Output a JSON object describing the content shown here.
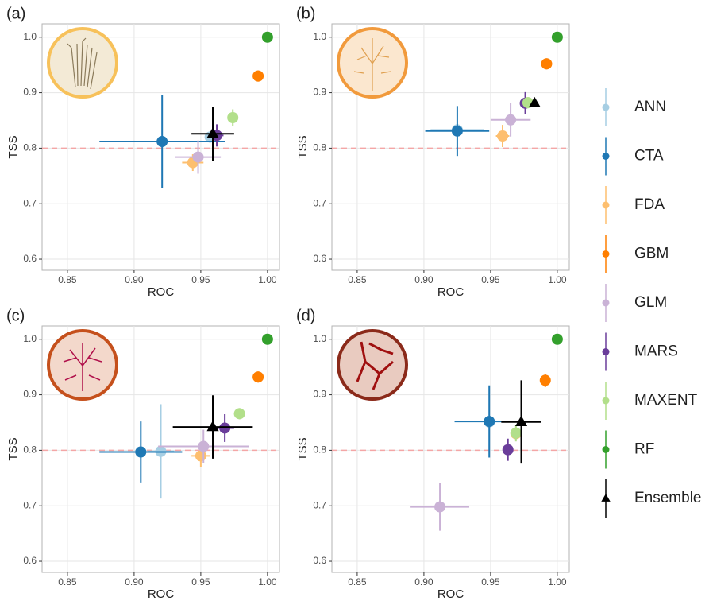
{
  "chart_data": [
    {
      "type": "scatter",
      "label": "(a)",
      "xlabel": "ROC",
      "ylabel": "TSS",
      "xlim": [
        0.831,
        1.009
      ],
      "ylim": [
        0.58,
        1.024
      ],
      "xticks": [
        0.85,
        {
          "value": 0.9,
          "label": "0.90"
        },
        0.95,
        {
          "value": 1,
          "label": "1.00"
        }
      ],
      "yticks": [
        0.6,
        0.7,
        0.8,
        0.9,
        {
          "value": 1,
          "label": "1.0"
        }
      ],
      "reference_line": 0.8,
      "grid": true,
      "series": [
        {
          "name": "ANN",
          "color": "#a6cee3",
          "marker": "circle",
          "x": [
            0.957
          ],
          "y": [
            0.82
          ],
          "xerr": [
            0.004
          ],
          "yerr": [
            0.01
          ]
        },
        {
          "name": "CTA",
          "color": "#1f78b4",
          "marker": "circle",
          "x": [
            0.921
          ],
          "y": [
            0.812
          ],
          "xerr": [
            0.047
          ],
          "yerr": [
            0.084
          ]
        },
        {
          "name": "FDA",
          "color": "#fdbf6f",
          "marker": "circle",
          "x": [
            0.944
          ],
          "y": [
            0.774
          ],
          "xerr": [
            0.008
          ],
          "yerr": [
            0.015
          ]
        },
        {
          "name": "GBM",
          "color": "#ff7f00",
          "marker": "circle",
          "x": [
            0.993
          ],
          "y": [
            0.93
          ],
          "xerr": [
            0.002
          ],
          "yerr": [
            0.01
          ]
        },
        {
          "name": "GLM",
          "color": "#cab2d6",
          "marker": "circle",
          "x": [
            0.948
          ],
          "y": [
            0.784
          ],
          "xerr": [
            0.017
          ],
          "yerr": [
            0.03
          ]
        },
        {
          "name": "MARS",
          "color": "#6a3d9a",
          "marker": "circle",
          "x": [
            0.962
          ],
          "y": [
            0.823
          ],
          "xerr": [
            0.005
          ],
          "yerr": [
            0.02
          ]
        },
        {
          "name": "MAXENT",
          "color": "#b2df8a",
          "marker": "circle",
          "x": [
            0.974
          ],
          "y": [
            0.855
          ],
          "xerr": [
            0.003
          ],
          "yerr": [
            0.015
          ]
        },
        {
          "name": "RF",
          "color": "#33a02c",
          "marker": "circle",
          "x": [
            1
          ],
          "y": [
            1
          ],
          "xerr": [
            0
          ],
          "yerr": [
            0
          ]
        },
        {
          "name": "Ensemble",
          "color": "#000000",
          "marker": "triangle",
          "x": [
            0.959
          ],
          "y": [
            0.826
          ],
          "xerr": [
            0.016
          ],
          "yerr": [
            0.049
          ]
        }
      ]
    },
    {
      "type": "scatter",
      "label": "(b)",
      "xlabel": "ROC",
      "ylabel": "TSS",
      "xlim": [
        0.831,
        1.009
      ],
      "ylim": [
        0.58,
        1.024
      ],
      "xticks": [
        0.85,
        {
          "value": 0.9,
          "label": "0.90"
        },
        0.95,
        {
          "value": 1,
          "label": "1.00"
        }
      ],
      "yticks": [
        0.6,
        0.7,
        0.8,
        0.9,
        {
          "value": 1,
          "label": "1.0"
        }
      ],
      "reference_line": 0.8,
      "grid": true,
      "series": [
        {
          "name": "ANN",
          "color": "#a6cee3",
          "marker": "circle",
          "x": [
            0.925
          ],
          "y": [
            0.833
          ],
          "xerr": [
            0.02
          ],
          "yerr": [
            0.01
          ]
        },
        {
          "name": "CTA",
          "color": "#1f78b4",
          "marker": "circle",
          "x": [
            0.925
          ],
          "y": [
            0.831
          ],
          "xerr": [
            0.024
          ],
          "yerr": [
            0.045
          ]
        },
        {
          "name": "FDA",
          "color": "#fdbf6f",
          "marker": "circle",
          "x": [
            0.959
          ],
          "y": [
            0.822
          ],
          "xerr": [
            0.005
          ],
          "yerr": [
            0.02
          ]
        },
        {
          "name": "GBM",
          "color": "#ff7f00",
          "marker": "circle",
          "x": [
            0.992
          ],
          "y": [
            0.952
          ],
          "xerr": [
            0.002
          ],
          "yerr": [
            0.01
          ]
        },
        {
          "name": "GLM",
          "color": "#cab2d6",
          "marker": "circle",
          "x": [
            0.965
          ],
          "y": [
            0.851
          ],
          "xerr": [
            0.015
          ],
          "yerr": [
            0.03
          ]
        },
        {
          "name": "MARS",
          "color": "#6a3d9a",
          "marker": "circle",
          "x": [
            0.976
          ],
          "y": [
            0.881
          ],
          "xerr": [
            0.003
          ],
          "yerr": [
            0.02
          ]
        },
        {
          "name": "MAXENT",
          "color": "#b2df8a",
          "marker": "circle",
          "x": [
            0.978
          ],
          "y": [
            0.882
          ],
          "xerr": [
            0.003
          ],
          "yerr": [
            0.01
          ]
        },
        {
          "name": "RF",
          "color": "#33a02c",
          "marker": "circle",
          "x": [
            1
          ],
          "y": [
            1
          ],
          "xerr": [
            0
          ],
          "yerr": [
            0
          ]
        },
        {
          "name": "Ensemble",
          "color": "#000000",
          "marker": "triangle",
          "x": [
            0.983
          ],
          "y": [
            0.881
          ],
          "xerr": [
            0.002
          ],
          "yerr": [
            0.005
          ]
        }
      ]
    },
    {
      "type": "scatter",
      "label": "(c)",
      "xlabel": "ROC",
      "ylabel": "TSS",
      "xlim": [
        0.831,
        1.009
      ],
      "ylim": [
        0.58,
        1.024
      ],
      "xticks": [
        0.85,
        {
          "value": 0.9,
          "label": "0.90"
        },
        0.95,
        {
          "value": 1,
          "label": "1.00"
        }
      ],
      "yticks": [
        0.6,
        0.7,
        0.8,
        0.9,
        {
          "value": 1,
          "label": "1.0"
        }
      ],
      "reference_line": 0.8,
      "grid": true,
      "series": [
        {
          "name": "ANN",
          "color": "#a6cee3",
          "marker": "circle",
          "x": [
            0.92
          ],
          "y": [
            0.798
          ],
          "xerr": [
            0.01
          ],
          "yerr": [
            0.085
          ]
        },
        {
          "name": "CTA",
          "color": "#1f78b4",
          "marker": "circle",
          "x": [
            0.905
          ],
          "y": [
            0.797
          ],
          "xerr": [
            0.031
          ],
          "yerr": [
            0.055
          ]
        },
        {
          "name": "FDA",
          "color": "#fdbf6f",
          "marker": "circle",
          "x": [
            0.95
          ],
          "y": [
            0.79
          ],
          "xerr": [
            0.007
          ],
          "yerr": [
            0.02
          ]
        },
        {
          "name": "GBM",
          "color": "#ff7f00",
          "marker": "circle",
          "x": [
            0.993
          ],
          "y": [
            0.932
          ],
          "xerr": [
            0.002
          ],
          "yerr": [
            0.01
          ]
        },
        {
          "name": "GLM",
          "color": "#cab2d6",
          "marker": "circle",
          "x": [
            0.952
          ],
          "y": [
            0.807
          ],
          "xerr": [
            0.034
          ],
          "yerr": [
            0.03
          ]
        },
        {
          "name": "MARS",
          "color": "#6a3d9a",
          "marker": "circle",
          "x": [
            0.968
          ],
          "y": [
            0.84
          ],
          "xerr": [
            0.007
          ],
          "yerr": [
            0.025
          ]
        },
        {
          "name": "MAXENT",
          "color": "#b2df8a",
          "marker": "circle",
          "x": [
            0.979
          ],
          "y": [
            0.866
          ],
          "xerr": [
            0.004
          ],
          "yerr": [
            0.01
          ]
        },
        {
          "name": "RF",
          "color": "#33a02c",
          "marker": "circle",
          "x": [
            1
          ],
          "y": [
            1
          ],
          "xerr": [
            0
          ],
          "yerr": [
            0
          ]
        },
        {
          "name": "Ensemble",
          "color": "#000000",
          "marker": "triangle",
          "x": [
            0.959
          ],
          "y": [
            0.842
          ],
          "xerr": [
            0.03
          ],
          "yerr": [
            0.057
          ]
        }
      ]
    },
    {
      "type": "scatter",
      "label": "(d)",
      "xlabel": "ROC",
      "ylabel": "TSS",
      "xlim": [
        0.831,
        1.009
      ],
      "ylim": [
        0.58,
        1.024
      ],
      "xticks": [
        0.85,
        {
          "value": 0.9,
          "label": "0.90"
        },
        0.95,
        {
          "value": 1,
          "label": "1.00"
        }
      ],
      "yticks": [
        0.6,
        0.7,
        0.8,
        0.9,
        {
          "value": 1,
          "label": "1.0"
        }
      ],
      "reference_line": 0.8,
      "grid": true,
      "series": [
        {
          "name": "ANN",
          "color": "#a6cee3",
          "marker": "circle",
          "x": [
            0.949
          ],
          "y": [
            0.851
          ],
          "xerr": [
            0.004
          ],
          "yerr": [
            0.01
          ]
        },
        {
          "name": "CTA",
          "color": "#1f78b4",
          "marker": "circle",
          "x": [
            0.949
          ],
          "y": [
            0.852
          ],
          "xerr": [
            0.026
          ],
          "yerr": [
            0.065
          ]
        },
        {
          "name": "FDA",
          "color": "#fdbf6f",
          "marker": "circle",
          "x": [
            0.969
          ],
          "y": [
            0.83
          ],
          "xerr": [
            0.003
          ],
          "yerr": [
            0.01
          ]
        },
        {
          "name": "GBM",
          "color": "#ff7f00",
          "marker": "circle",
          "x": [
            0.991
          ],
          "y": [
            0.926
          ],
          "xerr": [
            0.002
          ],
          "yerr": [
            0.012
          ]
        },
        {
          "name": "GLM",
          "color": "#cab2d6",
          "marker": "circle",
          "x": [
            0.912
          ],
          "y": [
            0.698
          ],
          "xerr": [
            0.022
          ],
          "yerr": [
            0.043
          ]
        },
        {
          "name": "MARS",
          "color": "#6a3d9a",
          "marker": "circle",
          "x": [
            0.963
          ],
          "y": [
            0.801
          ],
          "xerr": [
            0.003
          ],
          "yerr": [
            0.02
          ]
        },
        {
          "name": "MAXENT",
          "color": "#b2df8a",
          "marker": "circle",
          "x": [
            0.969
          ],
          "y": [
            0.831
          ],
          "xerr": [
            0.003
          ],
          "yerr": [
            0.015
          ]
        },
        {
          "name": "RF",
          "color": "#33a02c",
          "marker": "circle",
          "x": [
            1
          ],
          "y": [
            1
          ],
          "xerr": [
            0
          ],
          "yerr": [
            0
          ]
        },
        {
          "name": "Ensemble",
          "color": "#000000",
          "marker": "triangle",
          "x": [
            0.973
          ],
          "y": [
            0.851
          ],
          "xerr": [
            0.015
          ],
          "yerr": [
            0.075
          ]
        }
      ]
    }
  ]
}
